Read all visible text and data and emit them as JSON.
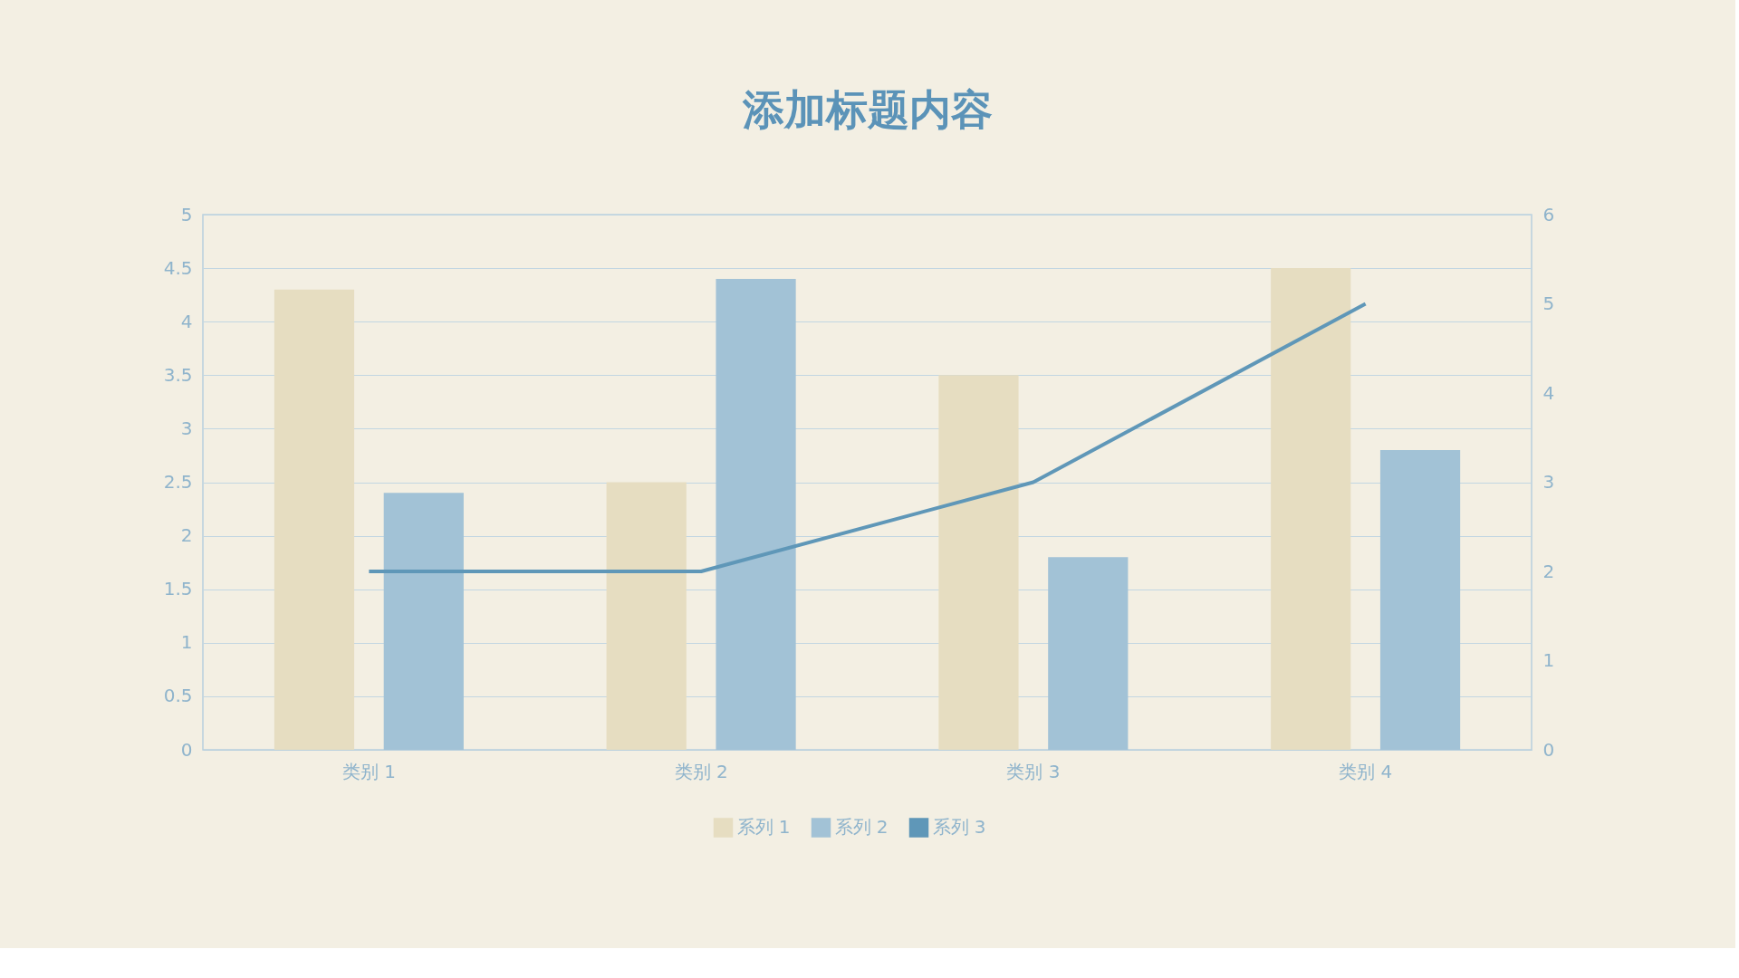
{
  "chart_data": {
    "type": "bar",
    "title": "添加标题内容",
    "categories": [
      "类别 1",
      "类别 2",
      "类别 3",
      "类别 4"
    ],
    "series": [
      {
        "name": "系列 1",
        "color": "#e6ddc1",
        "values": [
          4.3,
          2.5,
          3.5,
          4.5
        ]
      },
      {
        "name": "系列 2",
        "color": "#a2c2d6",
        "values": [
          2.4,
          4.4,
          1.8,
          2.8
        ]
      },
      {
        "name": "系列 3",
        "color": "#5f97b8",
        "type": "line",
        "axis": "y2",
        "values": [
          2,
          2,
          3,
          5
        ]
      }
    ],
    "ylim": [
      0,
      5
    ],
    "yticks": [
      0,
      0.5,
      1,
      1.5,
      2,
      2.5,
      3,
      3.5,
      4,
      4.5,
      5
    ],
    "y2lim": [
      0,
      6
    ],
    "y2ticks": [
      0,
      1,
      2,
      3,
      4,
      5,
      6
    ],
    "grid": "y",
    "legend": "bottom"
  }
}
